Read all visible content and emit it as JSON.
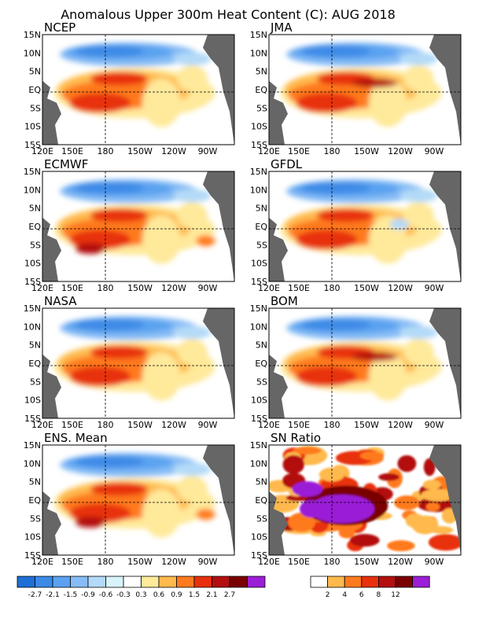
{
  "title": "Anomalous Upper 300m Heat Content (C): AUG 2018",
  "lon_labels": [
    "120E",
    "150E",
    "180",
    "150W",
    "120W",
    "90W"
  ],
  "lat_labels": [
    "15N",
    "10N",
    "5N",
    "EQ",
    "5S",
    "10S",
    "15S"
  ],
  "panels": [
    {
      "label": "NCEP"
    },
    {
      "label": "JMA"
    },
    {
      "label": "ECMWF"
    },
    {
      "label": "GFDL"
    },
    {
      "label": "NASA"
    },
    {
      "label": "BOM"
    },
    {
      "label": "ENS. Mean"
    },
    {
      "label": "SN Ratio"
    }
  ],
  "colorbar_anomaly": {
    "labels": [
      "-2.7",
      "-2.1",
      "-1.5",
      "-0.9",
      "-0.6",
      "-0.3",
      "0.3",
      "0.6",
      "0.9",
      "1.5",
      "2.1",
      "2.7"
    ],
    "colors": [
      "#1f6fd6",
      "#3d8ae6",
      "#5aa2f0",
      "#86bcf5",
      "#b3daf8",
      "#d9f3fb",
      "#ffffff",
      "#ffe99a",
      "#ffb94d",
      "#ff7a1f",
      "#e8300f",
      "#b30f0f",
      "#7a0000",
      "#9b1fd6"
    ]
  },
  "colorbar_sn": {
    "labels": [
      "2",
      "4",
      "6",
      "8",
      "12"
    ],
    "colors": [
      "#ffffff",
      "#ffb94d",
      "#ff7a1f",
      "#e8300f",
      "#b30f0f",
      "#7a0000",
      "#9b1fd6"
    ]
  },
  "palette": {
    "land": "#666666",
    "border": "#000000"
  }
}
